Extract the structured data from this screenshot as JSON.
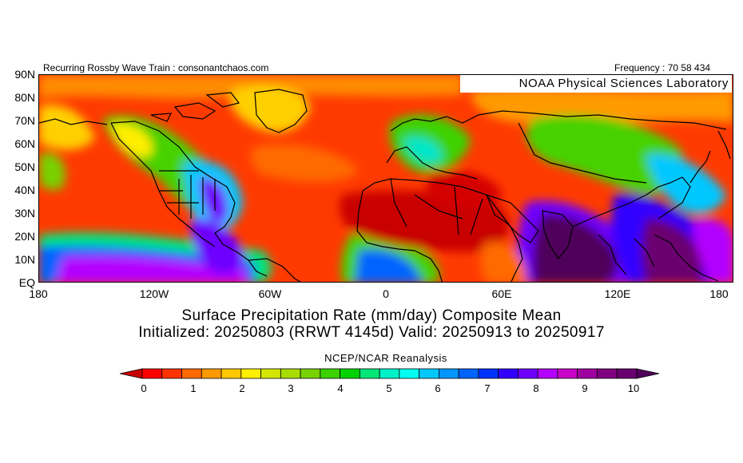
{
  "header": {
    "left_text": "Recurring Rossby Wave Train : consonantchaos.com",
    "right_text": "Frequency : 70 58 434"
  },
  "map": {
    "badge": "NOAA Physical Sciences Laboratory",
    "lat_labels": [
      "90N",
      "80N",
      "70N",
      "60N",
      "50N",
      "40N",
      "30N",
      "20N",
      "10N",
      "EQ"
    ],
    "lon_labels": [
      "180",
      "120W",
      "60W",
      "0",
      "60E",
      "120E",
      "180"
    ]
  },
  "titles": {
    "line1": "Surface Precipitation Rate (mm/day) Composite Mean",
    "line2": "Initialized: 20250803 (RRWT 4145d) Valid: 20250913 to 20250917",
    "source": "NCEP/NCAR Reanalysis"
  },
  "colorbar": {
    "tick_labels": [
      "0",
      "1",
      "2",
      "3",
      "4",
      "5",
      "6",
      "7",
      "8",
      "9",
      "10"
    ],
    "colors": [
      "#c80000",
      "#ff0000",
      "#ff3300",
      "#ff6a00",
      "#ff9900",
      "#ffc800",
      "#ffee00",
      "#d4e600",
      "#a8dc00",
      "#78d200",
      "#3cd200",
      "#00d200",
      "#00e678",
      "#00f0c8",
      "#00fff0",
      "#00c8ff",
      "#0096ff",
      "#0064ff",
      "#0032ff",
      "#3200ff",
      "#6e00ff",
      "#b400ff",
      "#c800c8",
      "#a000a0",
      "#800080",
      "#6a0070",
      "#50005a"
    ]
  }
}
